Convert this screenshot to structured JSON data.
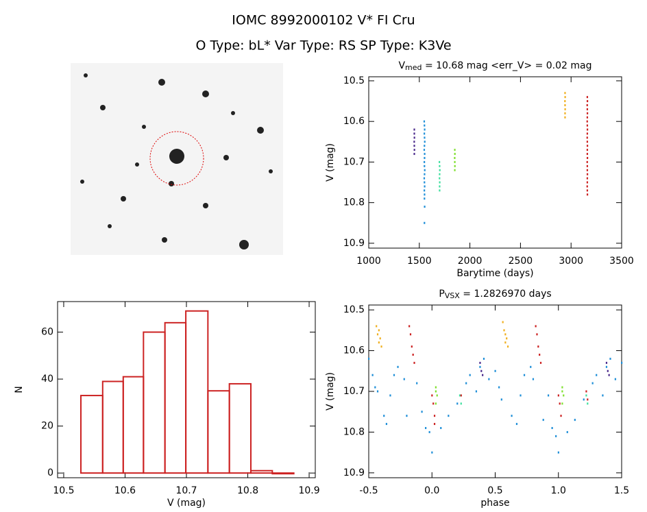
{
  "header": {
    "title": "IOMC 8992000102   V* FI Cru",
    "subtitle": "O Type: bL*  Var Type: RS  SP Type: K3Ve"
  },
  "chart_data": [
    {
      "type": "scatter",
      "title": [
        "V",
        "med",
        " = 10.68 mag <err_V> = 0.02 mag"
      ],
      "x_label": "Barytime (days)",
      "y_label": "V (mag)",
      "xlim": [
        1000,
        3500
      ],
      "xticks": [
        1000,
        1500,
        2000,
        2500,
        3000,
        3500
      ],
      "ylim": [
        10.912,
        10.49
      ],
      "yticks": [
        10.5,
        10.6,
        10.7,
        10.8,
        10.9
      ],
      "series": [
        {
          "color": "#4b2a8c",
          "x": [
            1450,
            1450,
            1451,
            1449,
            1450,
            1451,
            1450
          ],
          "values": [
            10.62,
            10.63,
            10.64,
            10.65,
            10.66,
            10.67,
            10.68
          ]
        },
        {
          "color": "#1f8fd8",
          "x": [
            1548,
            1550,
            1552,
            1549,
            1551,
            1553,
            1550,
            1548,
            1552,
            1551,
            1549,
            1550,
            1553,
            1551,
            1548,
            1550,
            1552,
            1549,
            1551,
            1550,
            1552,
            1550
          ],
          "values": [
            10.6,
            10.61,
            10.62,
            10.63,
            10.64,
            10.65,
            10.66,
            10.67,
            10.68,
            10.69,
            10.7,
            10.71,
            10.72,
            10.73,
            10.74,
            10.75,
            10.76,
            10.77,
            10.78,
            10.79,
            10.81,
            10.85
          ]
        },
        {
          "color": "#40e0a0",
          "x": [
            1698,
            1700,
            1702,
            1700,
            1699,
            1701,
            1700,
            1700
          ],
          "values": [
            10.7,
            10.71,
            10.72,
            10.73,
            10.74,
            10.75,
            10.76,
            10.77
          ]
        },
        {
          "color": "#80e030",
          "x": [
            1850,
            1851,
            1849,
            1850,
            1851,
            1850
          ],
          "values": [
            10.67,
            10.68,
            10.69,
            10.7,
            10.71,
            10.72
          ]
        },
        {
          "color": "#f0b020",
          "x": [
            2940,
            2941,
            2939,
            2940,
            2941,
            2940,
            2940
          ],
          "values": [
            10.53,
            10.54,
            10.55,
            10.56,
            10.57,
            10.58,
            10.59
          ]
        },
        {
          "color": "#cc2222",
          "x": [
            3160,
            3161,
            3159,
            3160,
            3161,
            3160,
            3159,
            3160,
            3161,
            3160,
            3159,
            3160,
            3161,
            3160,
            3160,
            3161,
            3159,
            3160,
            3160,
            3161,
            3160,
            3160,
            3159,
            3160,
            3161
          ],
          "values": [
            10.54,
            10.55,
            10.56,
            10.57,
            10.58,
            10.59,
            10.6,
            10.61,
            10.62,
            10.63,
            10.64,
            10.65,
            10.66,
            10.67,
            10.68,
            10.69,
            10.7,
            10.71,
            10.72,
            10.73,
            10.74,
            10.75,
            10.76,
            10.77,
            10.78
          ]
        }
      ]
    },
    {
      "type": "histogram",
      "x_label": "V (mag)",
      "y_label": "N",
      "color": "#cc2222",
      "bins": [
        10.528,
        10.5635,
        10.597,
        10.63,
        10.665,
        10.699,
        10.735,
        10.77,
        10.805,
        10.84,
        10.875
      ],
      "values": [
        33,
        39,
        41,
        60,
        64,
        69,
        35,
        38,
        1,
        0
      ],
      "xlim": [
        10.49,
        10.91
      ],
      "xticks": [
        10.5,
        10.6,
        10.7,
        10.8,
        10.9
      ],
      "ylim": [
        -2,
        73
      ],
      "yticks": [
        0,
        20,
        40,
        60
      ]
    },
    {
      "type": "scatter",
      "title": [
        "P",
        "VSX",
        " = 1.2826970 days"
      ],
      "x_label": "phase",
      "y_label": "V (mag)",
      "xlim": [
        -0.5,
        1.5
      ],
      "xticks": [
        -0.5,
        {
          "value": 0,
          "label": "0.0"
        },
        0.5,
        {
          "value": 1,
          "label": "1.0"
        },
        1.5
      ],
      "ylim": [
        10.912,
        10.488
      ],
      "yticks": [
        10.5,
        10.6,
        10.7,
        10.8,
        10.9
      ],
      "series": [
        {
          "color": "#1f8fd8",
          "x": [
            -0.5,
            -0.47,
            -0.45,
            -0.43,
            -0.38,
            -0.36,
            -0.33,
            -0.3,
            -0.27,
            -0.22,
            -0.2,
            -0.12,
            -0.08,
            -0.05,
            -0.02,
            0.0,
            0.07,
            0.13,
            0.2,
            0.27,
            0.3,
            0.35,
            0.38,
            0.41,
            0.45,
            0.5,
            0.53,
            0.55,
            0.63,
            0.67,
            0.7,
            0.73,
            0.78,
            0.8,
            0.88,
            0.92,
            0.95,
            0.98,
            1.0,
            1.07,
            1.13,
            1.2,
            1.27,
            1.3,
            1.35,
            1.38,
            1.41,
            1.45,
            1.5
          ],
          "values": [
            10.62,
            10.66,
            10.69,
            10.7,
            10.76,
            10.78,
            10.71,
            10.66,
            10.64,
            10.67,
            10.76,
            10.68,
            10.75,
            10.79,
            10.8,
            10.85,
            10.79,
            10.76,
            10.73,
            10.68,
            10.66,
            10.7,
            10.64,
            10.62,
            10.67,
            10.65,
            10.69,
            10.72,
            10.76,
            10.78,
            10.71,
            10.66,
            10.64,
            10.67,
            10.77,
            10.71,
            10.79,
            10.81,
            10.85,
            10.8,
            10.77,
            10.72,
            10.68,
            10.66,
            10.71,
            10.64,
            10.62,
            10.67,
            10.63
          ]
        },
        {
          "color": "#4b2a8c",
          "x": [
            0.38,
            0.39,
            0.4,
            1.38,
            1.39,
            1.4
          ],
          "values": [
            10.63,
            10.65,
            10.66,
            10.63,
            10.65,
            10.66
          ]
        },
        {
          "color": "#40e0a0",
          "x": [
            0.22,
            0.23,
            1.22,
            1.23
          ],
          "values": [
            10.71,
            10.73,
            10.71,
            10.73
          ]
        },
        {
          "color": "#80e030",
          "x": [
            0.03,
            0.03,
            0.04,
            0.03,
            1.03,
            1.03,
            1.04,
            1.03
          ],
          "values": [
            10.69,
            10.7,
            10.71,
            10.73,
            10.69,
            10.7,
            10.71,
            10.73
          ]
        },
        {
          "color": "#f0b020",
          "x": [
            -0.44,
            -0.43,
            -0.42,
            -0.42,
            -0.41,
            -0.4,
            0.56,
            0.57,
            0.58,
            0.58,
            0.59,
            0.6
          ],
          "values": [
            10.54,
            10.56,
            10.55,
            10.58,
            10.57,
            10.59,
            10.53,
            10.55,
            10.56,
            10.58,
            10.57,
            10.59
          ]
        },
        {
          "color": "#cc2222",
          "x": [
            -0.18,
            -0.17,
            -0.16,
            -0.15,
            -0.14,
            0.0,
            0.01,
            0.02,
            0.02,
            0.23,
            0.82,
            0.83,
            0.84,
            0.85,
            0.86,
            1.0,
            1.01,
            1.02,
            1.22,
            1.23
          ],
          "values": [
            10.54,
            10.56,
            10.59,
            10.61,
            10.63,
            10.71,
            10.73,
            10.76,
            10.78,
            10.71,
            10.54,
            10.56,
            10.59,
            10.61,
            10.63,
            10.71,
            10.73,
            10.76,
            10.7,
            10.72
          ]
        }
      ]
    }
  ]
}
